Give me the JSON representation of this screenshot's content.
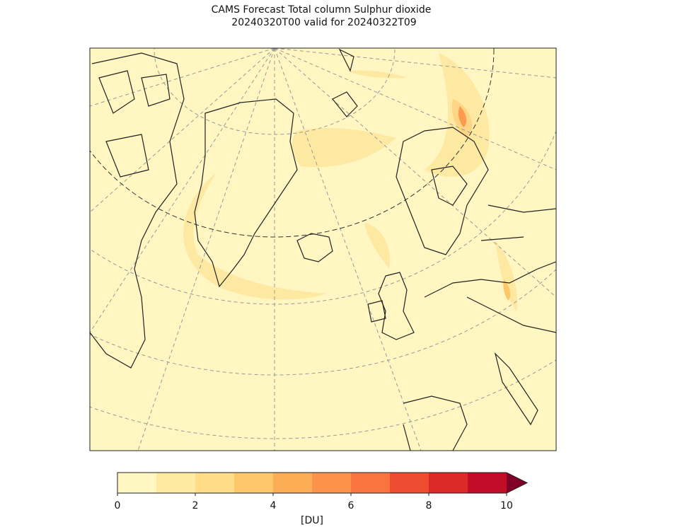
{
  "title": [
    "CAMS Forecast Total column Sulphur dioxide",
    "20240320T00 valid for 20240322T09"
  ],
  "colorbar": {
    "levels": [
      0,
      1,
      2,
      3,
      4,
      5,
      6,
      7,
      8,
      9,
      10
    ],
    "colors": [
      "#fff6c2",
      "#feeaa0",
      "#fedc88",
      "#fdc86a",
      "#fdae54",
      "#fc934a",
      "#f97540",
      "#ee4d32",
      "#dc2a26",
      "#c10d27"
    ],
    "extend_color": "#800026",
    "ticks": [
      0,
      2,
      4,
      6,
      8,
      10
    ],
    "label": "[DU]"
  }
}
